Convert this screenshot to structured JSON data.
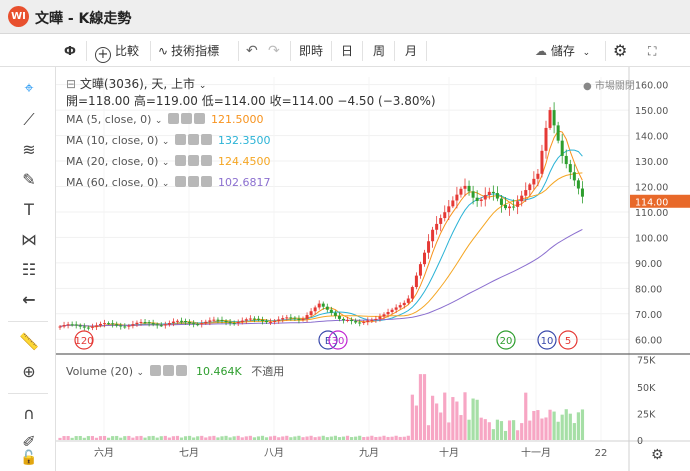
{
  "app": {
    "logo_text": "WI",
    "title": "文曄 - K線走勢"
  },
  "toolbar": {
    "interval": "0",
    "compare": "比較",
    "indicators": "技術指標",
    "undo_icon": "undo-icon",
    "redo_icon": "redo-icon",
    "realtime": "即時",
    "day": "日",
    "week": "周",
    "month": "月",
    "save": "儲存",
    "settings_icon": "gear-icon",
    "fullscreen_icon": "fullscreen-icon"
  },
  "symbol": {
    "title": "文曄(3036), 天, 上市",
    "market_status": "● 市場關閉",
    "ohlc": "開=118.00  高=119.00  低=114.00  收=114.00  −4.50 (−3.80%)"
  },
  "ma_legends": [
    {
      "label": "MA (5, close, 0)",
      "value": "121.5000",
      "color": "#f7931e"
    },
    {
      "label": "MA (10, close, 0)",
      "value": "132.3500",
      "color": "#2bb3d6"
    },
    {
      "label": "MA (20, close, 0)",
      "value": "124.4500",
      "color": "#f5a623"
    },
    {
      "label": "MA (60, close, 0)",
      "value": "102.6817",
      "color": "#8b6fcf"
    }
  ],
  "volume_legend": {
    "label": "Volume (20)",
    "value": "10.464K",
    "note": "不適用",
    "value_color": "#2e9e2e"
  },
  "price_axis": {
    "ticks": [
      "160.00",
      "150.00",
      "140.00",
      "130.00",
      "120.00",
      "110.00",
      "100.00",
      "90.00",
      "80.00",
      "70.00",
      "60.00"
    ],
    "current_price": "114.00",
    "current_color": "#e8692a"
  },
  "volume_axis": {
    "ticks": [
      "75K",
      "50K",
      "25K",
      "0"
    ]
  },
  "time_axis": {
    "ticks": [
      "六月",
      "七月",
      "八月",
      "九月",
      "十月",
      "十一月",
      "22"
    ]
  },
  "event_markers": [
    {
      "text": "120",
      "color": "#e53935"
    },
    {
      "text": "E",
      "color": "#3949ab"
    },
    {
      "text": "30",
      "color": "#c026d3"
    },
    {
      "text": "20",
      "color": "#2e9e2e"
    },
    {
      "text": "10",
      "color": "#3949ab"
    },
    {
      "text": "5",
      "color": "#e53935"
    }
  ],
  "colors": {
    "up": "#e53935",
    "down": "#2e9e2e",
    "vol_up": "#f7a6c4",
    "vol_down": "#a6dfa6"
  }
}
